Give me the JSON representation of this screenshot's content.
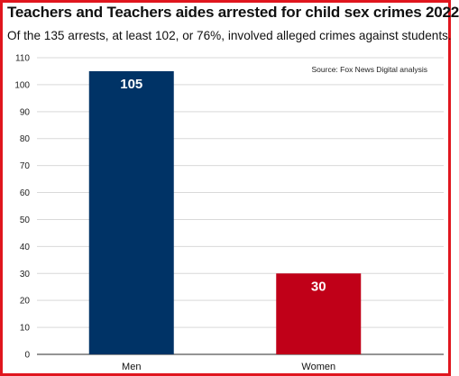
{
  "chart_data": {
    "type": "bar",
    "title": "Teachers and Teachers aides arrested for child sex crimes 2022",
    "subtitle": "Of the 135 arrests, at least 102, or 76%, involved alleged crimes against students.",
    "source": "Source: Fox News Digital analysis",
    "categories": [
      "Men",
      "Women"
    ],
    "values": [
      105,
      30
    ],
    "data_labels": [
      "105",
      "30"
    ],
    "colors": [
      "#003366",
      "#c00018"
    ],
    "xlabel": "",
    "ylabel": "",
    "ylim": [
      0,
      110
    ],
    "yticks": [
      0,
      10,
      20,
      30,
      40,
      50,
      60,
      70,
      80,
      90,
      100,
      110
    ],
    "grid": true,
    "legend": "none"
  },
  "colors": {
    "border": "#e0161e",
    "gridline": "#d9d9d9",
    "axis_text": "#222222"
  }
}
